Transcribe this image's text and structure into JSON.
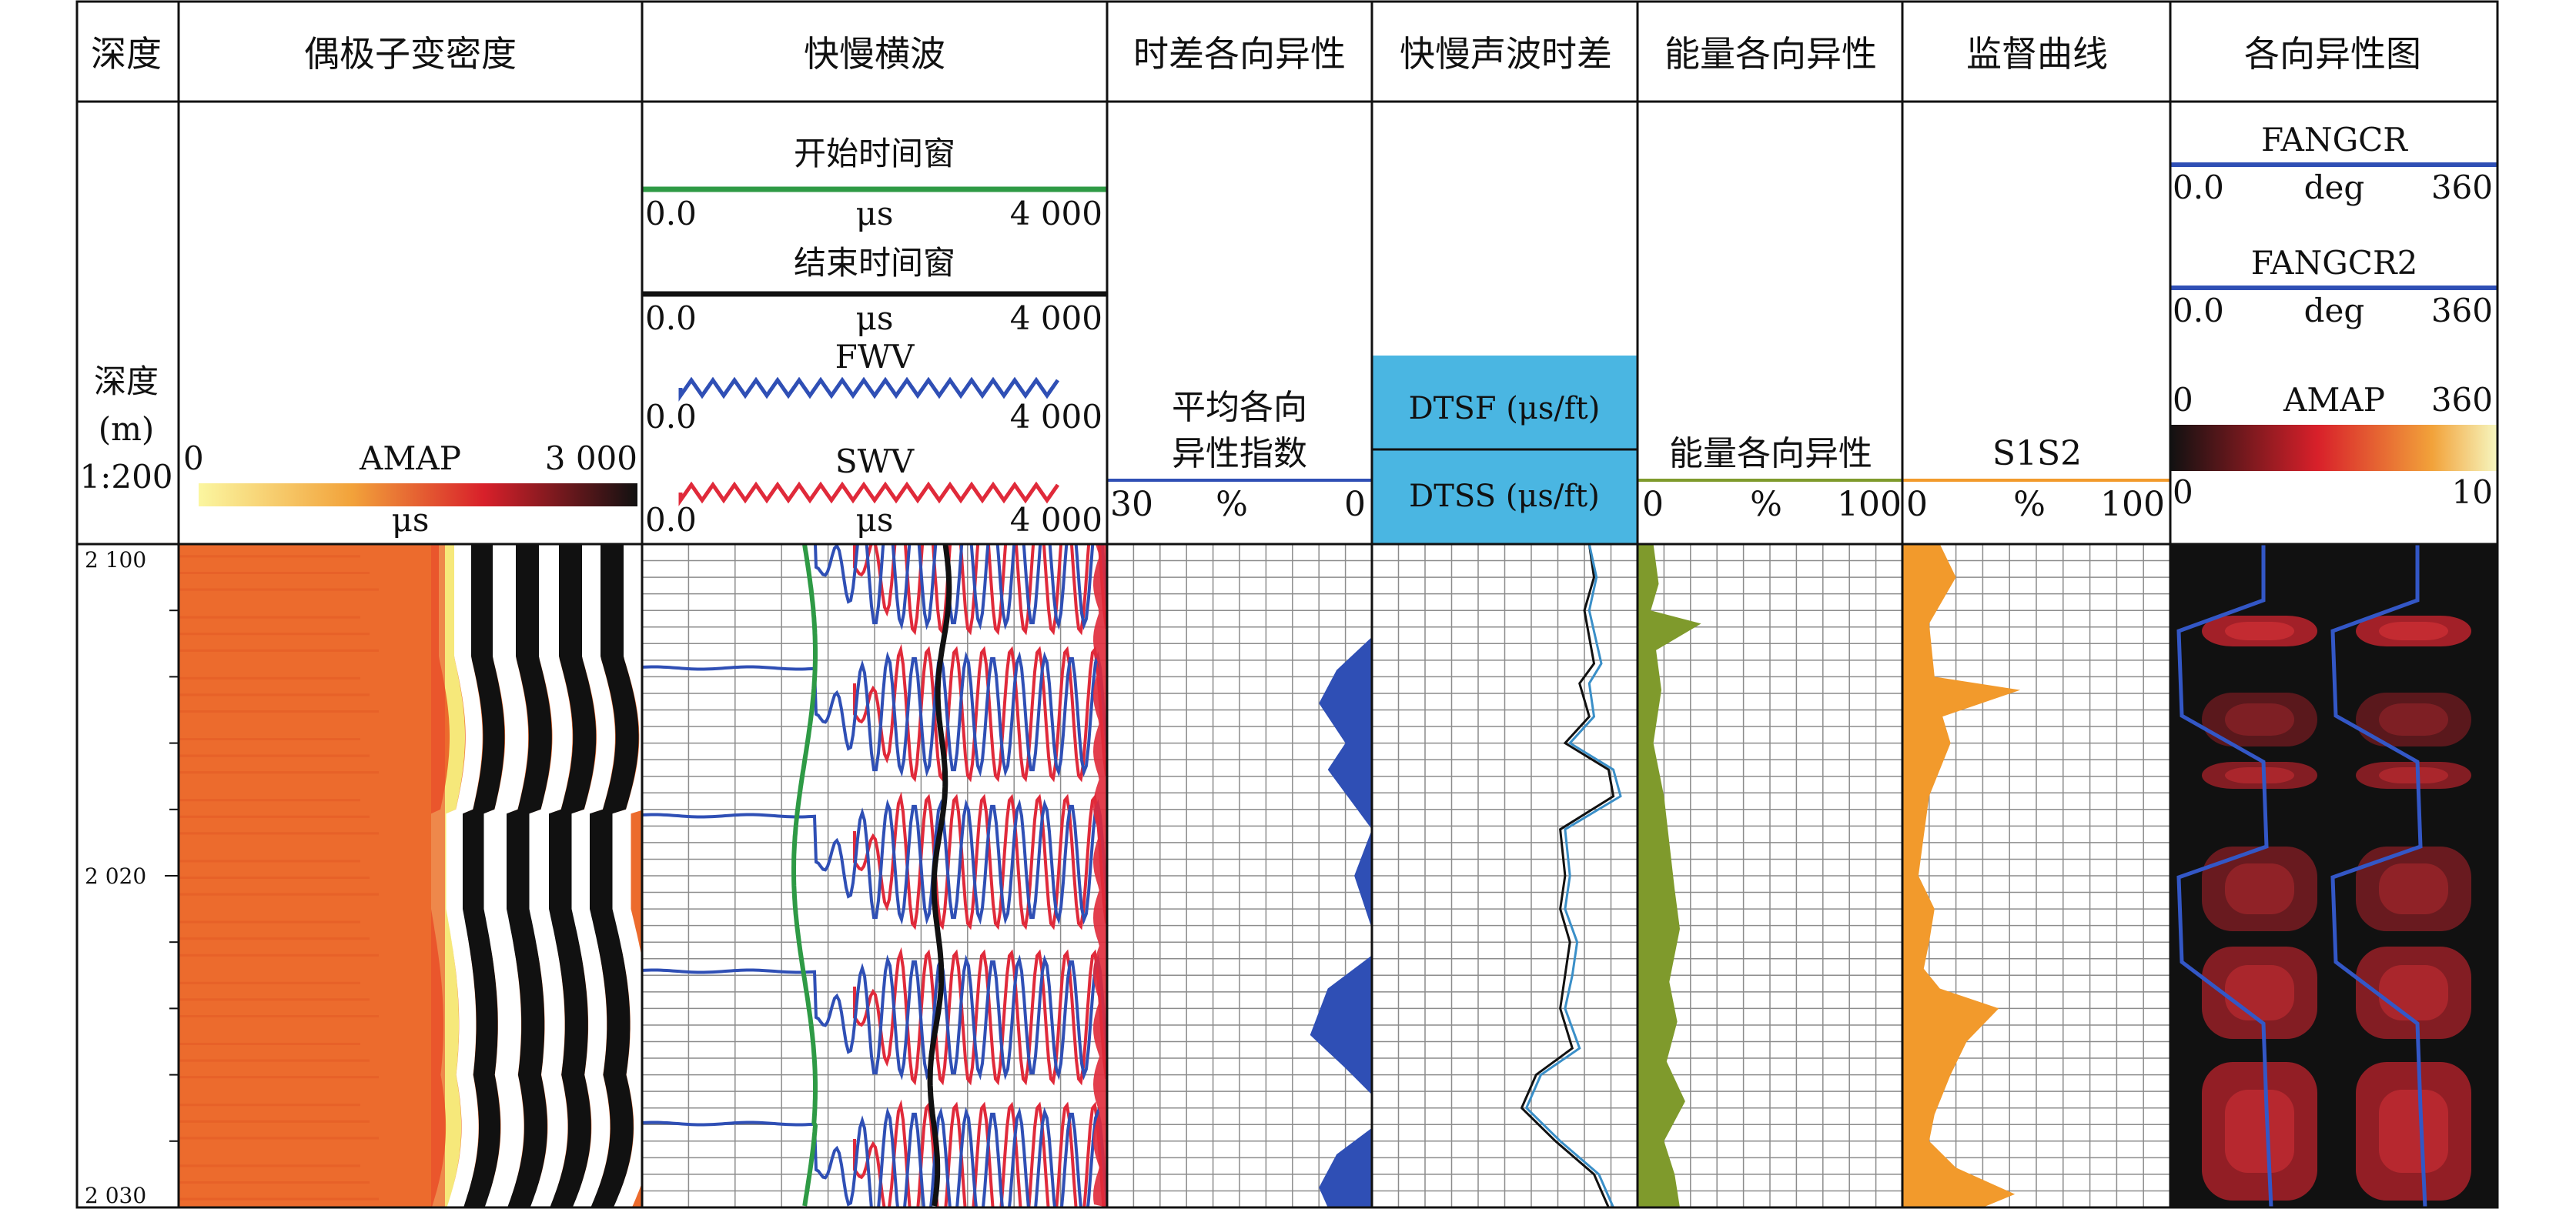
{
  "colors": {
    "grid": "#8c8c8c",
    "blue": "#2f4fb5",
    "green": "#2e9a45",
    "red": "#e02a3a",
    "olive": "#7f9a2c",
    "orange": "#f29a2c",
    "cyan_box": "#4ab6e2",
    "bg_orange": "#ec6b2d"
  },
  "tracks": [
    {
      "id": "depth",
      "header": "深度",
      "scale_lines": [
        "深度",
        "(m)",
        "1:200"
      ]
    },
    {
      "id": "dipole",
      "header": "偶极子变密度",
      "curve": "AMAP",
      "min": "0",
      "max": "3 000",
      "unit": "μs"
    },
    {
      "id": "shear",
      "header": "快慢横波",
      "curves": [
        {
          "name": "开始时间窗",
          "min": "0.0",
          "max": "4 000",
          "unit": "μs"
        },
        {
          "name": "结束时间窗",
          "min": "0.0",
          "max": "4 000",
          "unit": "μs"
        },
        {
          "name": "FWV",
          "min": "0.0",
          "max": "4 000",
          "unit": "μs"
        },
        {
          "name": "SWV",
          "min": "0.0",
          "max": "4 000",
          "unit": "μs"
        }
      ]
    },
    {
      "id": "time_aniso",
      "header": "时差各向异性",
      "curve_line1": "平均各向",
      "curve_line2": "异性指数",
      "min": "30",
      "max": "0",
      "unit": "%"
    },
    {
      "id": "slowness",
      "header": "快慢声波时差",
      "curve1": "DTSF (μs/ft)",
      "curve2": "DTSS (μs/ft)"
    },
    {
      "id": "energy",
      "header": "能量各向异性",
      "curve": "能量各向异性",
      "min": "0",
      "max": "100",
      "unit": "%"
    },
    {
      "id": "monitor",
      "header": "监督曲线",
      "curve": "S1S2",
      "min": "0",
      "max": "100",
      "unit": "%"
    },
    {
      "id": "aniso_map",
      "header": "各向异性图",
      "curve1": {
        "name": "FANGCR",
        "min": "0.0",
        "max": "360",
        "unit": "deg"
      },
      "curve2": {
        "name": "FANGCR2",
        "min": "0.0",
        "max": "360",
        "unit": "deg"
      },
      "amap": {
        "name": "AMAP",
        "min": "0",
        "max": "360",
        "low": "0",
        "high": "10"
      }
    }
  ],
  "chart_data": {
    "type": "line",
    "depth_axis": {
      "ticks": [
        "2 100",
        "2 020",
        "2 030"
      ]
    },
    "series": [
      {
        "name": "平均各向异性指数",
        "track": "time_aniso",
        "depth": [
          0,
          0.14,
          0.19,
          0.24,
          0.3,
          0.34,
          0.43,
          0.5,
          0.58,
          0.62,
          0.67,
          0.74,
          0.79,
          0.83,
          0.88,
          0.92,
          0.97,
          1.0
        ],
        "values": [
          0,
          0,
          4,
          6,
          3,
          5,
          0,
          2,
          0,
          0,
          5,
          7,
          3,
          0,
          0,
          4,
          6,
          5
        ]
      },
      {
        "name": "DTSF",
        "track": "slowness",
        "depth": [
          0,
          0.05,
          0.1,
          0.18,
          0.21,
          0.26,
          0.3,
          0.34,
          0.38,
          0.43,
          0.5,
          0.55,
          0.6,
          0.65,
          0.7,
          0.76,
          0.8,
          0.85,
          0.9,
          0.95,
          1.0
        ],
        "values": [
          0.9,
          0.92,
          0.88,
          0.92,
          0.86,
          0.9,
          0.8,
          0.98,
          1.0,
          0.78,
          0.8,
          0.78,
          0.82,
          0.8,
          0.78,
          0.83,
          0.68,
          0.62,
          0.76,
          0.92,
          0.98
        ]
      },
      {
        "name": "DTSS",
        "track": "slowness",
        "depth": [
          0,
          0.05,
          0.1,
          0.18,
          0.21,
          0.26,
          0.3,
          0.34,
          0.38,
          0.43,
          0.5,
          0.55,
          0.6,
          0.65,
          0.7,
          0.76,
          0.8,
          0.85,
          0.9,
          0.95,
          1.0
        ],
        "values": [
          0.9,
          0.93,
          0.9,
          0.95,
          0.9,
          0.92,
          0.82,
          1.0,
          1.03,
          0.8,
          0.82,
          0.8,
          0.85,
          0.83,
          0.8,
          0.86,
          0.7,
          0.64,
          0.78,
          0.94,
          1.0
        ]
      },
      {
        "name": "能量各向异性",
        "track": "energy",
        "depth": [
          0,
          0.06,
          0.1,
          0.12,
          0.16,
          0.22,
          0.3,
          0.38,
          0.45,
          0.52,
          0.58,
          0.66,
          0.72,
          0.78,
          0.84,
          0.9,
          0.95,
          1.0
        ],
        "values": [
          6,
          8,
          5,
          24,
          7,
          9,
          6,
          10,
          12,
          14,
          16,
          12,
          15,
          11,
          18,
          10,
          14,
          16
        ]
      },
      {
        "name": "S1S2",
        "track": "monitor",
        "depth": [
          0,
          0.05,
          0.12,
          0.2,
          0.22,
          0.26,
          0.3,
          0.38,
          0.44,
          0.5,
          0.55,
          0.6,
          0.64,
          0.67,
          0.7,
          0.75,
          0.8,
          0.86,
          0.9,
          0.94,
          0.98,
          1.0
        ],
        "values": [
          14,
          20,
          10,
          12,
          44,
          15,
          18,
          10,
          8,
          6,
          12,
          10,
          8,
          14,
          36,
          24,
          18,
          12,
          10,
          20,
          42,
          30
        ]
      }
    ]
  }
}
